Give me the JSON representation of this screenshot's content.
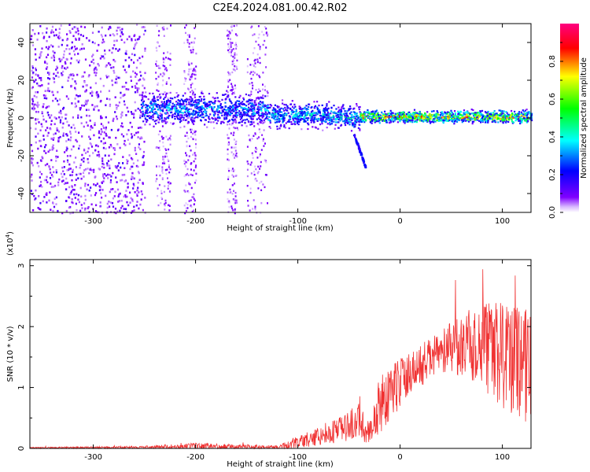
{
  "title": "C2E4.2024.081.00.42.R02",
  "chart_data": [
    {
      "type": "heatmap",
      "xlabel": "Height of straight line (km)",
      "ylabel": "Frequency (Hz)",
      "xlim": [
        -362,
        128
      ],
      "ylim": [
        -50,
        50
      ],
      "xticks": [
        -300,
        -200,
        -100,
        0,
        100
      ],
      "yticks": [
        -40,
        -20,
        0,
        20,
        40
      ],
      "colorbar": {
        "label": "Normalized spectral amplitude",
        "range": [
          0.0,
          1.0
        ],
        "ticks": [
          0.0,
          0.2,
          0.4,
          0.6,
          0.8
        ],
        "colors": [
          "#ffffff",
          "#8000ff",
          "#0000ff",
          "#00ffff",
          "#00ff00",
          "#ffff00",
          "#ff0000",
          "#ff0080"
        ]
      },
      "features": [
        {
          "x_range": [
            -362,
            -250
          ],
          "y_range": [
            -50,
            50
          ],
          "amplitude": 0.15
        },
        {
          "x_range": [
            -250,
            -130
          ],
          "y_center": 5,
          "y_halfwidth": 8,
          "amplitude": 0.35
        },
        {
          "x_range": [
            -130,
            -40
          ],
          "y_center": 2,
          "y_halfwidth": 5,
          "amplitude": 0.45
        },
        {
          "x_range": [
            -40,
            128
          ],
          "y_center": 1,
          "y_halfwidth": 3,
          "amplitude": 0.75
        }
      ]
    },
    {
      "type": "line",
      "xlabel": "Height of straight line (km)",
      "ylabel": "SNR (10 * v/v)",
      "y_multiplier": "(x10",
      "y_multiplier_exp": "4",
      "xlim": [
        -362,
        128
      ],
      "ylim": [
        0,
        3.1
      ],
      "xticks": [
        -300,
        -200,
        -100,
        0,
        100
      ],
      "yticks": [
        0,
        1,
        2,
        3
      ],
      "color": "#f03232",
      "envelope": {
        "x": [
          -362,
          -250,
          -200,
          -120,
          -100,
          -80,
          -60,
          -40,
          -30,
          -20,
          -10,
          0,
          20,
          40,
          60,
          80,
          100,
          110,
          128
        ],
        "mean": [
          0.01,
          0.02,
          0.04,
          0.02,
          0.1,
          0.2,
          0.3,
          0.45,
          0.25,
          0.7,
          0.9,
          1.1,
          1.35,
          1.6,
          1.7,
          1.7,
          1.5,
          1.45,
          1.4
        ],
        "spread": [
          0.01,
          0.02,
          0.05,
          0.03,
          0.1,
          0.15,
          0.2,
          0.3,
          0.2,
          0.5,
          0.5,
          0.4,
          0.35,
          0.35,
          0.5,
          0.7,
          0.9,
          0.95,
          1.0
        ]
      }
    }
  ]
}
